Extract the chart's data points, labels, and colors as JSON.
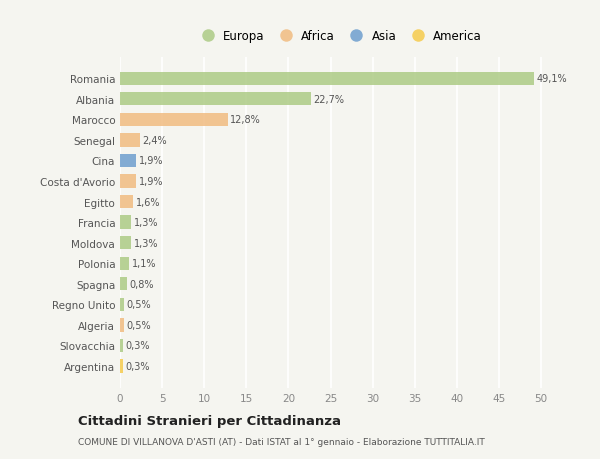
{
  "countries": [
    "Romania",
    "Albania",
    "Marocco",
    "Senegal",
    "Cina",
    "Costa d'Avorio",
    "Egitto",
    "Francia",
    "Moldova",
    "Polonia",
    "Spagna",
    "Regno Unito",
    "Algeria",
    "Slovacchia",
    "Argentina"
  ],
  "values": [
    49.1,
    22.7,
    12.8,
    2.4,
    1.9,
    1.9,
    1.6,
    1.3,
    1.3,
    1.1,
    0.8,
    0.5,
    0.5,
    0.3,
    0.3
  ],
  "labels": [
    "49,1%",
    "22,7%",
    "12,8%",
    "2,4%",
    "1,9%",
    "1,9%",
    "1,6%",
    "1,3%",
    "1,3%",
    "1,1%",
    "0,8%",
    "0,5%",
    "0,5%",
    "0,3%",
    "0,3%"
  ],
  "colors": [
    "#a8c87e",
    "#a8c87e",
    "#f0b87a",
    "#f0b87a",
    "#6699cc",
    "#f0b87a",
    "#f0b87a",
    "#a8c87e",
    "#a8c87e",
    "#a8c87e",
    "#a8c87e",
    "#a8c87e",
    "#f0b87a",
    "#a8c87e",
    "#f5c842"
  ],
  "legend_labels": [
    "Europa",
    "Africa",
    "Asia",
    "America"
  ],
  "legend_colors": [
    "#a8c87e",
    "#f0b87a",
    "#6699cc",
    "#f5c842"
  ],
  "title": "Cittadini Stranieri per Cittadinanza",
  "subtitle": "COMUNE DI VILLANOVA D'ASTI (AT) - Dati ISTAT al 1° gennaio - Elaborazione TUTTITALIA.IT",
  "xlim": [
    0,
    52
  ],
  "xticks": [
    0,
    5,
    10,
    15,
    20,
    25,
    30,
    35,
    40,
    45,
    50
  ],
  "background_color": "#f5f5f0",
  "grid_color": "#ffffff",
  "bar_alpha": 0.8
}
